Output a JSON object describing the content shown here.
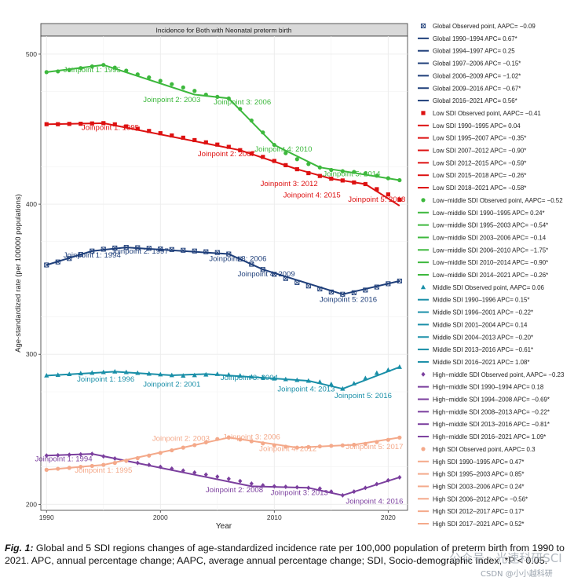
{
  "chart_data": {
    "type": "line",
    "title": "Incidence for Both with Neonatal preterm birth",
    "xlabel": "Year",
    "ylabel": "Age-standardized rate (per 100000 populations)",
    "xlim": [
      1989.5,
      2021.7
    ],
    "ylim": [
      196,
      512
    ],
    "xticks": [
      1990,
      2000,
      2010,
      2020
    ],
    "yticks": [
      200,
      300,
      400,
      500
    ],
    "years": [
      1990,
      1991,
      1992,
      1993,
      1994,
      1995,
      1996,
      1997,
      1998,
      1999,
      2000,
      2001,
      2002,
      2003,
      2004,
      2005,
      2006,
      2007,
      2008,
      2009,
      2010,
      2011,
      2012,
      2013,
      2014,
      2015,
      2016,
      2017,
      2018,
      2019,
      2020,
      2021
    ],
    "series": [
      {
        "name": "Global",
        "color": "#1f3f7a",
        "marker": "square-x",
        "values": [
          359.5,
          361.5,
          363.8,
          366.5,
          368.8,
          370.0,
          370.8,
          371.2,
          371.0,
          370.6,
          370.2,
          369.8,
          369.3,
          368.8,
          368.3,
          367.8,
          366.8,
          363.5,
          360.0,
          356.5,
          353.3,
          350.5,
          347.8,
          345.5,
          343.5,
          341.5,
          340.0,
          341.0,
          342.8,
          344.8,
          347.0,
          348.8
        ],
        "fit_vertices": [
          [
            1990,
            359.5
          ],
          [
            1994,
            368.8
          ],
          [
            1997,
            371.2
          ],
          [
            2006,
            366.8
          ],
          [
            2009,
            356.5
          ],
          [
            2016,
            340.0
          ],
          [
            2021,
            348.8
          ]
        ],
        "joinpoint_labels": [
          {
            "text": "Joinpoint 1: 1994",
            "x": 1994.0,
            "y": 364.5
          },
          {
            "text": "Joinpoint 2: 1997",
            "x": 1998.2,
            "y": 367.0
          },
          {
            "text": "Joinpoint 3: 2006",
            "x": 2006.8,
            "y": 362.2
          },
          {
            "text": "Joinpoint 4: 2009",
            "x": 2009.3,
            "y": 351.8
          },
          {
            "text": "Joinpoint 5: 2016",
            "x": 2016.5,
            "y": 335.0
          }
        ]
      },
      {
        "name": "Low SDI",
        "color": "#dd1111",
        "marker": "square",
        "values": [
          453.3,
          453.3,
          453.5,
          453.6,
          453.8,
          454.0,
          453.2,
          451.8,
          450.3,
          448.8,
          447.3,
          445.8,
          444.3,
          442.7,
          441.2,
          439.7,
          438.2,
          436.0,
          433.7,
          431.5,
          428.8,
          426.0,
          423.3,
          420.7,
          418.8,
          417.0,
          415.8,
          414.5,
          413.4,
          410.0,
          406.5,
          403.0
        ],
        "fit_vertices": [
          [
            1990,
            453.3
          ],
          [
            1995,
            454.0
          ],
          [
            2007,
            436.0
          ],
          [
            2012,
            423.3
          ],
          [
            2015,
            417.0
          ],
          [
            2018,
            413.4
          ],
          [
            2021,
            399.0
          ]
        ],
        "joinpoint_labels": [
          {
            "text": "Joinpoint 1: 1995",
            "x": 1995.6,
            "y": 449.5
          },
          {
            "text": "Joinpoint 2: 2007",
            "x": 2005.8,
            "y": 432.0
          },
          {
            "text": "Joinpoint 3: 2012",
            "x": 2011.3,
            "y": 412.0
          },
          {
            "text": "Joinpoint 4: 2015",
            "x": 2013.3,
            "y": 404.5
          },
          {
            "text": "Joinpoint 5: 2018",
            "x": 2019.0,
            "y": 401.5
          }
        ]
      },
      {
        "name": "Low-middle SDI",
        "color": "#3db83d",
        "marker": "circle",
        "values": [
          488.0,
          488.5,
          489.5,
          490.7,
          491.8,
          492.8,
          491.0,
          489.0,
          486.5,
          484.5,
          482.2,
          480.0,
          477.8,
          475.5,
          473.0,
          471.5,
          470.5,
          463.5,
          455.8,
          447.8,
          439.5,
          434.0,
          430.0,
          426.8,
          424.5,
          422.8,
          422.0,
          421.5,
          420.5,
          419.0,
          417.3,
          416.0
        ],
        "fit_vertices": [
          [
            1990,
            488.0
          ],
          [
            1995,
            492.8
          ],
          [
            2003,
            473.0
          ],
          [
            2006,
            470.5
          ],
          [
            2010,
            439.5
          ],
          [
            2014,
            424.5
          ],
          [
            2021,
            416.0
          ]
        ],
        "joinpoint_labels": [
          {
            "text": "Joinpoint 1: 1995",
            "x": 1994.0,
            "y": 488.0
          },
          {
            "text": "Joinpoint 2: 2003",
            "x": 2001.0,
            "y": 468.0
          },
          {
            "text": "Joinpoint 3: 2006",
            "x": 2007.2,
            "y": 466.5
          },
          {
            "text": "Joinpoint 4: 2010",
            "x": 2010.8,
            "y": 435.0
          },
          {
            "text": "Joinpoint 5: 2014",
            "x": 2016.8,
            "y": 418.5
          }
        ]
      },
      {
        "name": "Middle SDI",
        "color": "#1a8fa8",
        "marker": "triangle",
        "values": [
          285.8,
          286.2,
          286.7,
          287.2,
          287.6,
          288.0,
          288.4,
          288.0,
          287.5,
          287.0,
          286.5,
          286.0,
          285.7,
          286.0,
          286.4,
          286.8,
          286.3,
          285.7,
          285.0,
          284.4,
          283.8,
          283.3,
          282.8,
          282.3,
          281.5,
          280.0,
          277.0,
          280.5,
          284.0,
          287.5,
          289.5,
          291.5
        ],
        "fit_vertices": [
          [
            1990,
            285.8
          ],
          [
            1996,
            288.4
          ],
          [
            2001,
            286.0
          ],
          [
            2004,
            286.8
          ],
          [
            2013,
            282.3
          ],
          [
            2016,
            277.0
          ],
          [
            2021,
            291.5
          ]
        ],
        "joinpoint_labels": [
          {
            "text": "Joinpoint 1: 1996",
            "x": 1995.2,
            "y": 281.8
          },
          {
            "text": "Joinpoint 2: 2001",
            "x": 2001.0,
            "y": 278.5
          },
          {
            "text": "Joinpoint 3: 2004",
            "x": 2007.8,
            "y": 282.8
          },
          {
            "text": "Joinpoint 4: 2013",
            "x": 2012.8,
            "y": 275.2
          },
          {
            "text": "Joinpoint 5: 2016",
            "x": 2017.8,
            "y": 270.8
          }
        ]
      },
      {
        "name": "High-middle SDI",
        "color": "#7b3f9e",
        "marker": "diamond",
        "values": [
          232.5,
          232.7,
          233.0,
          233.3,
          233.6,
          232.0,
          230.5,
          229.0,
          227.6,
          226.3,
          225.0,
          223.8,
          222.5,
          221.2,
          219.8,
          218.4,
          217.0,
          215.5,
          213.8,
          212.7,
          212.0,
          211.7,
          211.4,
          211.0,
          210.5,
          208.5,
          206.0,
          208.5,
          211.0,
          213.5,
          216.0,
          218.0
        ],
        "fit_vertices": [
          [
            1990,
            232.5
          ],
          [
            1994,
            233.6
          ],
          [
            2008,
            212.0
          ],
          [
            2013,
            211.0
          ],
          [
            2016,
            206.0
          ],
          [
            2021,
            218.0
          ]
        ],
        "joinpoint_labels": [
          {
            "text": "Joinpoint 1: 1994",
            "x": 1991.5,
            "y": 228.8
          },
          {
            "text": "Joinpoint 2: 2008",
            "x": 2006.5,
            "y": 208.0
          },
          {
            "text": "Joinpoint 3: 2013",
            "x": 2012.2,
            "y": 206.2
          },
          {
            "text": "Joinpoint 4: 2016",
            "x": 2018.8,
            "y": 200.5
          }
        ]
      },
      {
        "name": "High SDI",
        "color": "#f4a98a",
        "marker": "circle",
        "values": [
          223.0,
          223.7,
          224.3,
          225.0,
          225.6,
          226.3,
          227.6,
          229.0,
          230.8,
          232.5,
          234.3,
          236.0,
          237.8,
          239.5,
          241.3,
          243.5,
          244.5,
          243.2,
          242.0,
          240.6,
          239.4,
          238.4,
          237.8,
          238.2,
          238.6,
          239.0,
          239.3,
          239.7,
          240.3,
          241.5,
          243.0,
          244.5
        ],
        "fit_vertices": [
          [
            1990,
            223.0
          ],
          [
            1995,
            226.3
          ],
          [
            2003,
            239.5
          ],
          [
            2006,
            244.5
          ],
          [
            2012,
            237.8
          ],
          [
            2017,
            239.7
          ],
          [
            2021,
            244.5
          ]
        ],
        "joinpoint_labels": [
          {
            "text": "Joinpoint 1: 1995",
            "x": 1995.0,
            "y": 221.0
          },
          {
            "text": "Joinpoint 2: 2003",
            "x": 2001.8,
            "y": 242.2
          },
          {
            "text": "Joinpoint 3: 2006",
            "x": 2008.0,
            "y": 243.4
          },
          {
            "text": "Joinpoint 4: 2012",
            "x": 2011.2,
            "y": 235.4
          },
          {
            "text": "Joinpoint 5: 2017",
            "x": 2018.8,
            "y": 236.8
          }
        ]
      }
    ],
    "legend": {
      "placement": "right",
      "entries": [
        {
          "text": "Global Observed point, AAPC= −0.09",
          "color": "#1f3f7a",
          "kind": "point",
          "marker": "square-x"
        },
        {
          "text": "Global 1990–1994 APC= 0.67*",
          "color": "#1f3f7a",
          "kind": "line"
        },
        {
          "text": "Global 1994–1997 APC= 0.25",
          "color": "#1f3f7a",
          "kind": "line"
        },
        {
          "text": "Global 1997–2006 APC= −0.15*",
          "color": "#1f3f7a",
          "kind": "line"
        },
        {
          "text": "Global 2006–2009 APC= −1.02*",
          "color": "#1f3f7a",
          "kind": "line"
        },
        {
          "text": "Global 2009–2016 APC= −0.67*",
          "color": "#1f3f7a",
          "kind": "line"
        },
        {
          "text": "Global 2016–2021 APC= 0.56*",
          "color": "#1f3f7a",
          "kind": "line"
        },
        {
          "text": "Low SDI Observed point, AAPC= −0.41",
          "color": "#dd1111",
          "kind": "point",
          "marker": "square"
        },
        {
          "text": "Low SDI 1990–1995 APC= 0.04",
          "color": "#dd1111",
          "kind": "line"
        },
        {
          "text": "Low SDI 1995–2007 APC= −0.35*",
          "color": "#dd1111",
          "kind": "line"
        },
        {
          "text": "Low SDI 2007–2012 APC= −0.90*",
          "color": "#dd1111",
          "kind": "line"
        },
        {
          "text": "Low SDI 2012–2015 APC= −0.59*",
          "color": "#dd1111",
          "kind": "line"
        },
        {
          "text": "Low SDI 2015–2018 APC= −0.26*",
          "color": "#dd1111",
          "kind": "line"
        },
        {
          "text": "Low SDI 2018–2021 APC= −0.58*",
          "color": "#dd1111",
          "kind": "line"
        },
        {
          "text": "Low−middle SDI Observed point, AAPC= −0.52",
          "color": "#3db83d",
          "kind": "point",
          "marker": "circle"
        },
        {
          "text": "Low−middle SDI 1990–1995 APC= 0.24*",
          "color": "#3db83d",
          "kind": "line"
        },
        {
          "text": "Low−middle SDI 1995–2003 APC= −0.54*",
          "color": "#3db83d",
          "kind": "line"
        },
        {
          "text": "Low−middle SDI 2003–2006 APC= −0.14",
          "color": "#3db83d",
          "kind": "line"
        },
        {
          "text": "Low−middle SDI 2006–2010 APC= −1.75*",
          "color": "#3db83d",
          "kind": "line"
        },
        {
          "text": "Low−middle SDI 2010–2014 APC= −0.90*",
          "color": "#3db83d",
          "kind": "line"
        },
        {
          "text": "Low−middle SDI 2014–2021 APC= −0.26*",
          "color": "#3db83d",
          "kind": "line"
        },
        {
          "text": "Middle SDI Observed point, AAPC= 0.06",
          "color": "#1a8fa8",
          "kind": "point",
          "marker": "triangle"
        },
        {
          "text": "Middle SDI 1990–1996 APC= 0.15*",
          "color": "#1a8fa8",
          "kind": "line"
        },
        {
          "text": "Middle SDI 1996–2001 APC= −0.22*",
          "color": "#1a8fa8",
          "kind": "line"
        },
        {
          "text": "Middle SDI 2001–2004 APC= 0.14",
          "color": "#1a8fa8",
          "kind": "line"
        },
        {
          "text": "Middle SDI 2004–2013 APC= −0.20*",
          "color": "#1a8fa8",
          "kind": "line"
        },
        {
          "text": "Middle SDI 2013–2016 APC= −0.61*",
          "color": "#1a8fa8",
          "kind": "line"
        },
        {
          "text": "Middle SDI 2016–2021 APC= 1.08*",
          "color": "#1a8fa8",
          "kind": "line"
        },
        {
          "text": "High−middle SDI Observed point, AAPC= −0.23",
          "color": "#7b3f9e",
          "kind": "point",
          "marker": "diamond"
        },
        {
          "text": "High−middle SDI 1990–1994 APC= 0.18",
          "color": "#7b3f9e",
          "kind": "line"
        },
        {
          "text": "High−middle SDI 1994–2008 APC= −0.69*",
          "color": "#7b3f9e",
          "kind": "line"
        },
        {
          "text": "High−middle SDI 2008–2013 APC= −0.22*",
          "color": "#7b3f9e",
          "kind": "line"
        },
        {
          "text": "High−middle SDI 2013–2016 APC= −0.81*",
          "color": "#7b3f9e",
          "kind": "line"
        },
        {
          "text": "High−middle SDI 2016–2021 APC= 1.09*",
          "color": "#7b3f9e",
          "kind": "line"
        },
        {
          "text": "High SDI Observed point, AAPC= 0.3",
          "color": "#f4a98a",
          "kind": "point",
          "marker": "circle"
        },
        {
          "text": "High SDI 1990–1995 APC= 0.47*",
          "color": "#f4a98a",
          "kind": "line"
        },
        {
          "text": "High SDI 1995–2003 APC= 0.85*",
          "color": "#f4a98a",
          "kind": "line"
        },
        {
          "text": "High SDI 2003–2006 APC= 0.24*",
          "color": "#f4a98a",
          "kind": "line"
        },
        {
          "text": "High SDI 2006–2012 APC= −0.56*",
          "color": "#f4a98a",
          "kind": "line"
        },
        {
          "text": "High SDI 2012–2017 APC= 0.17*",
          "color": "#f4a98a",
          "kind": "line"
        },
        {
          "text": "High SDI 2017–2021 APC= 0.52*",
          "color": "#f4a98a",
          "kind": "line"
        }
      ]
    }
  },
  "caption": {
    "label": "Fig. 1:",
    "text": " Global and 5 SDI regions changes of age-standardized incidence rate per 100,000 population of preterm birth from 1990 to 2021. APC, annual percentage change; AAPC, average annual percentage change; SDI, Socio-demographic Index, *P < 0.05."
  },
  "watermarks": {
    "wechat": "公众号 · 光速科研SCI",
    "csdn": "CSDN @小小越科研"
  }
}
